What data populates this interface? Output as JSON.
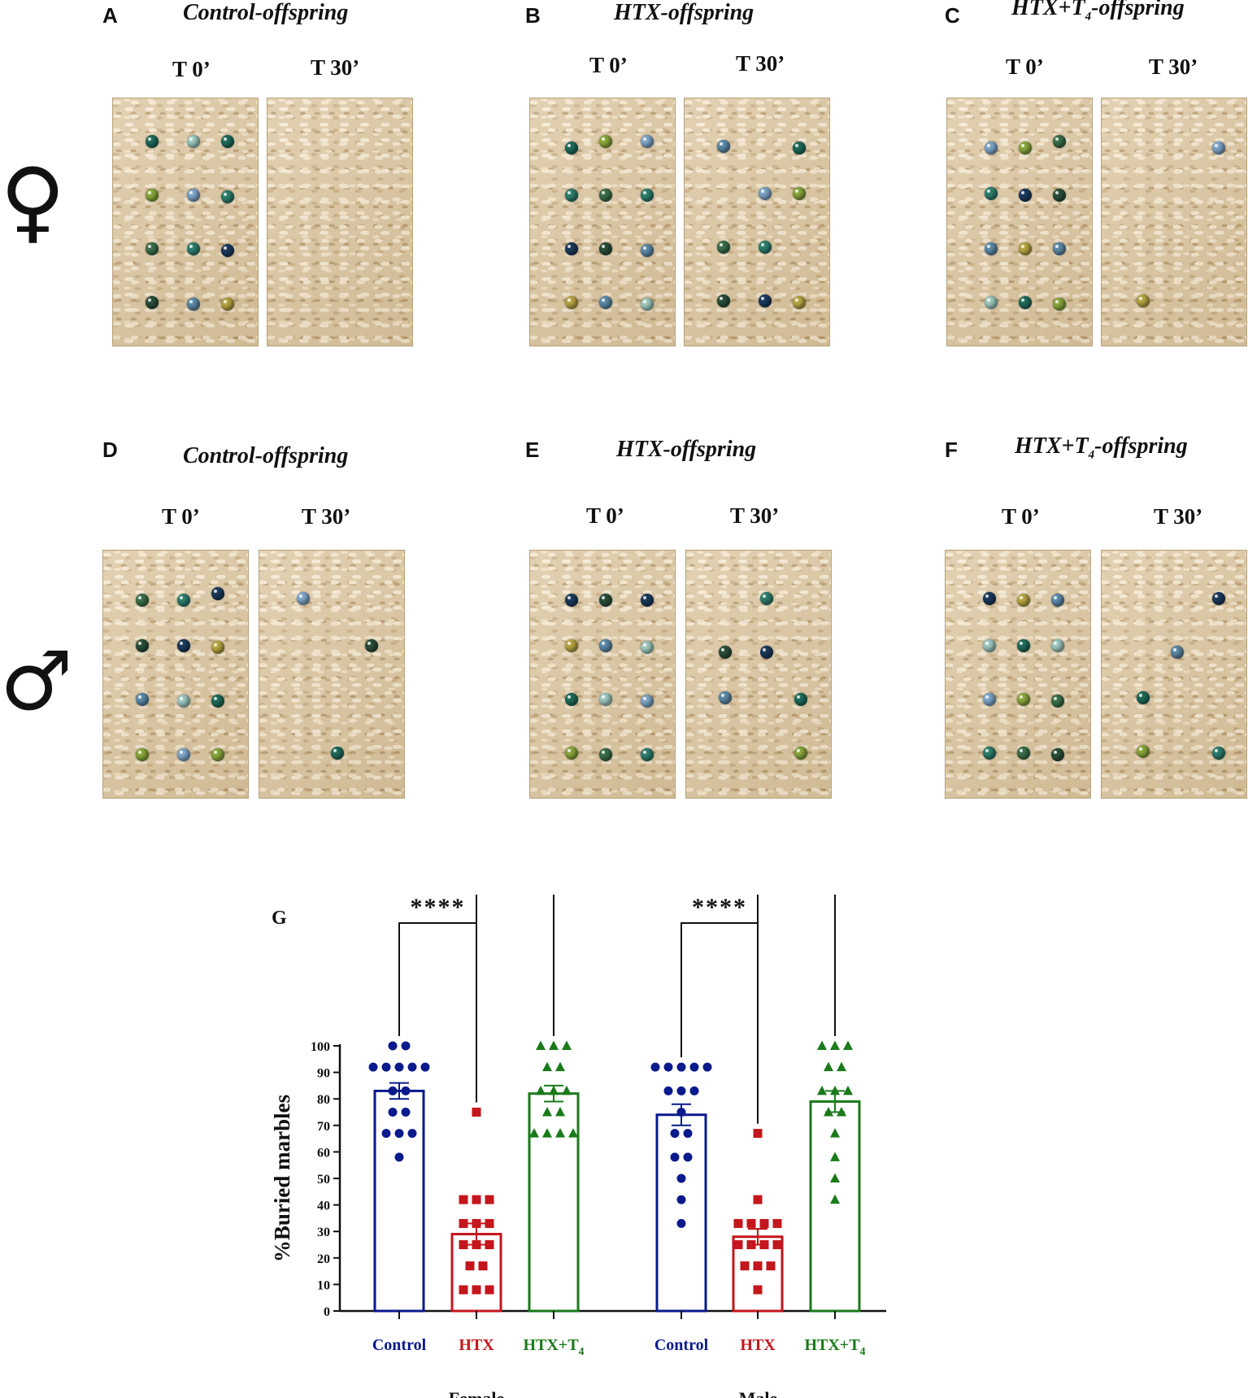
{
  "panels": {
    "A": {
      "letter": "A",
      "title": "Control-offspring",
      "t0": "T 0’",
      "t30": "T 30’"
    },
    "B": {
      "letter": "B",
      "title": "HTX-offspring",
      "t0": "T 0’",
      "t30": "T 30’"
    },
    "C": {
      "letter": "C",
      "title_main": "HTX+T",
      "title_sub": "4",
      "title_rest": "-offspring",
      "t0": "T 0’",
      "t30": "T 30’"
    },
    "D": {
      "letter": "D",
      "title": "Control-offspring",
      "t0": "T 0’",
      "t30": "T 30’"
    },
    "E": {
      "letter": "E",
      "title": "HTX-offspring",
      "t0": "T 0’",
      "t30": "T 30’"
    },
    "F": {
      "letter": "F",
      "title_main": "HTX+T",
      "title_sub": "4",
      "title_rest": "-offspring",
      "t0": "T 0’",
      "t30": "T 30’"
    }
  },
  "sex_symbols": {
    "female": "♀",
    "male": "♂"
  },
  "colors": {
    "control": "#0a1a8c",
    "htx": "#c4161c",
    "htx_t4": "#1a7a1a",
    "litter": "#dcc7a2"
  },
  "chart_data": {
    "type": "bar",
    "panel_letter": "G",
    "ylabel": "%Buried marbles",
    "ylim": [
      0,
      100
    ],
    "yticks": [
      "0",
      "10",
      "20",
      "30",
      "40",
      "50",
      "60",
      "70",
      "80",
      "90",
      "100"
    ],
    "groups": [
      {
        "name": "Female",
        "bars": [
          {
            "label": "Control",
            "mean": 83,
            "sem": 3,
            "color": "#0a1a8c",
            "marker": "circle",
            "points": [
              100,
              100,
              92,
              92,
              92,
              92,
              92,
              83,
              83,
              75,
              75,
              67,
              67,
              67,
              58
            ]
          },
          {
            "label": "HTX",
            "mean": 29,
            "sem": 4,
            "color": "#c4161c",
            "marker": "square",
            "points": [
              75,
              42,
              42,
              42,
              33,
              33,
              33,
              25,
              25,
              25,
              17,
              17,
              8,
              8,
              8
            ]
          },
          {
            "label_main": "HTX+T",
            "label_sub": "4",
            "mean": 82,
            "sem": 3,
            "color": "#1a7a1a",
            "marker": "triangle",
            "points": [
              100,
              100,
              100,
              92,
              92,
              83,
              83,
              83,
              75,
              75,
              67,
              67,
              67,
              67
            ]
          }
        ]
      },
      {
        "name": "Male",
        "bars": [
          {
            "label": "Control",
            "mean": 74,
            "sem": 4,
            "color": "#0a1a8c",
            "marker": "circle",
            "points": [
              92,
              92,
              92,
              92,
              92,
              83,
              83,
              83,
              75,
              67,
              67,
              58,
              58,
              50,
              42,
              33
            ]
          },
          {
            "label": "HTX",
            "mean": 28,
            "sem": 3,
            "color": "#c4161c",
            "marker": "square",
            "points": [
              67,
              42,
              33,
              33,
              33,
              33,
              25,
              25,
              25,
              25,
              17,
              17,
              17,
              8
            ]
          },
          {
            "label_main": "HTX+T",
            "label_sub": "4",
            "mean": 79,
            "sem": 4,
            "color": "#1a7a1a",
            "marker": "triangle",
            "points": [
              100,
              100,
              100,
              92,
              92,
              83,
              83,
              83,
              75,
              75,
              67,
              58,
              50,
              42
            ]
          }
        ]
      }
    ],
    "significance": [
      {
        "group": 0,
        "from": 0,
        "to": 1,
        "label": "****",
        "level": 1
      },
      {
        "group": 0,
        "from": 1,
        "to": 2,
        "label": "****",
        "level": 2
      },
      {
        "group": 1,
        "from": 0,
        "to": 1,
        "label": "****",
        "level": 1
      },
      {
        "group": 1,
        "from": 1,
        "to": 2,
        "label": "****",
        "level": 2
      }
    ]
  }
}
